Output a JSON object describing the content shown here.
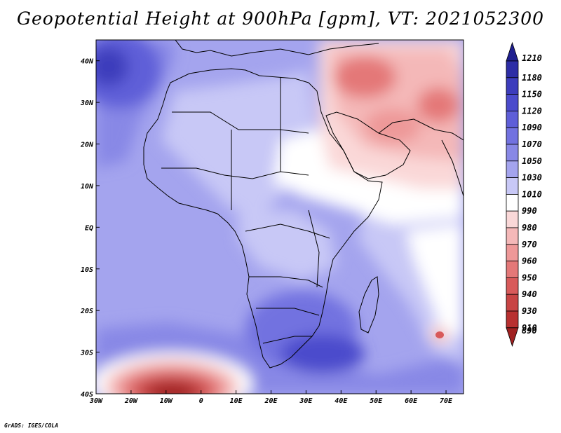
{
  "title": "Geopotential Height at 900hPa [gpm], VT: 2021052300",
  "footer": "GrADS: IGES/COLA",
  "map": {
    "lon_labels": [
      "30W",
      "20W",
      "10W",
      "0",
      "10E",
      "20E",
      "30E",
      "40E",
      "50E",
      "60E",
      "70E"
    ],
    "lat_labels": [
      "40N",
      "30N",
      "20N",
      "10N",
      "EQ",
      "10S",
      "20S",
      "30S",
      "40S"
    ]
  },
  "colorbar": {
    "levels": [
      "1210",
      "1180",
      "1150",
      "1120",
      "1090",
      "1070",
      "1050",
      "1030",
      "1010",
      "990",
      "980",
      "970",
      "960",
      "950",
      "940",
      "930",
      "910",
      "890"
    ],
    "colors": [
      "#1f1f8f",
      "#2d2da6",
      "#3c3cbc",
      "#4b4bcc",
      "#5e5ed8",
      "#7272e0",
      "#8888e6",
      "#a4a4ee",
      "#c8c8f6",
      "#ffffff",
      "#fad8d8",
      "#f4b8b8",
      "#ee9898",
      "#e47878",
      "#d85a5a",
      "#c84444",
      "#b83030",
      "#a02020"
    ]
  },
  "chart_data": {
    "type": "heatmap",
    "title": "Geopotential Height at 900hPa [gpm], VT: 2021052300",
    "variable": "Geopotential Height",
    "units": "gpm",
    "level": "900hPa",
    "valid_time": "2021052300",
    "lon_range": [
      "30W",
      "75E"
    ],
    "lat_range": [
      "40S",
      "45N"
    ],
    "contour_levels": [
      890,
      910,
      930,
      940,
      950,
      960,
      970,
      980,
      990,
      1010,
      1030,
      1050,
      1070,
      1090,
      1120,
      1150,
      1180,
      1210
    ]
  }
}
